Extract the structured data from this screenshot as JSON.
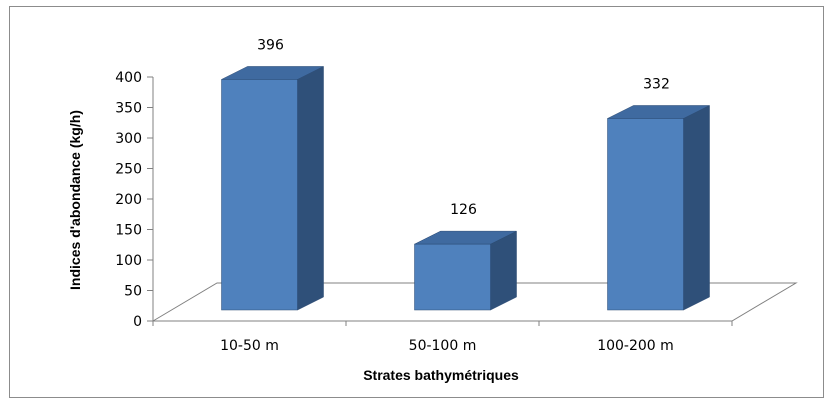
{
  "chart_data": {
    "type": "bar",
    "categories": [
      "10-50 m",
      "50-100 m",
      "100-200 m"
    ],
    "values": [
      396,
      126,
      332
    ],
    "data_labels": [
      "396",
      "126",
      "332"
    ],
    "xlabel": "Strates bathymétriques",
    "ylabel": "Indices d'abondance (kg/h)",
    "ylim": [
      0,
      400
    ],
    "yticks": [
      "0",
      "50",
      "100",
      "150",
      "200",
      "250",
      "300",
      "350",
      "400"
    ],
    "grid": false,
    "legend": "none",
    "three_d": true,
    "colors": {
      "front": "#4f81bd",
      "side": "#2f5079",
      "top": "#3f6aa0",
      "edge": "#2b4a73"
    }
  }
}
